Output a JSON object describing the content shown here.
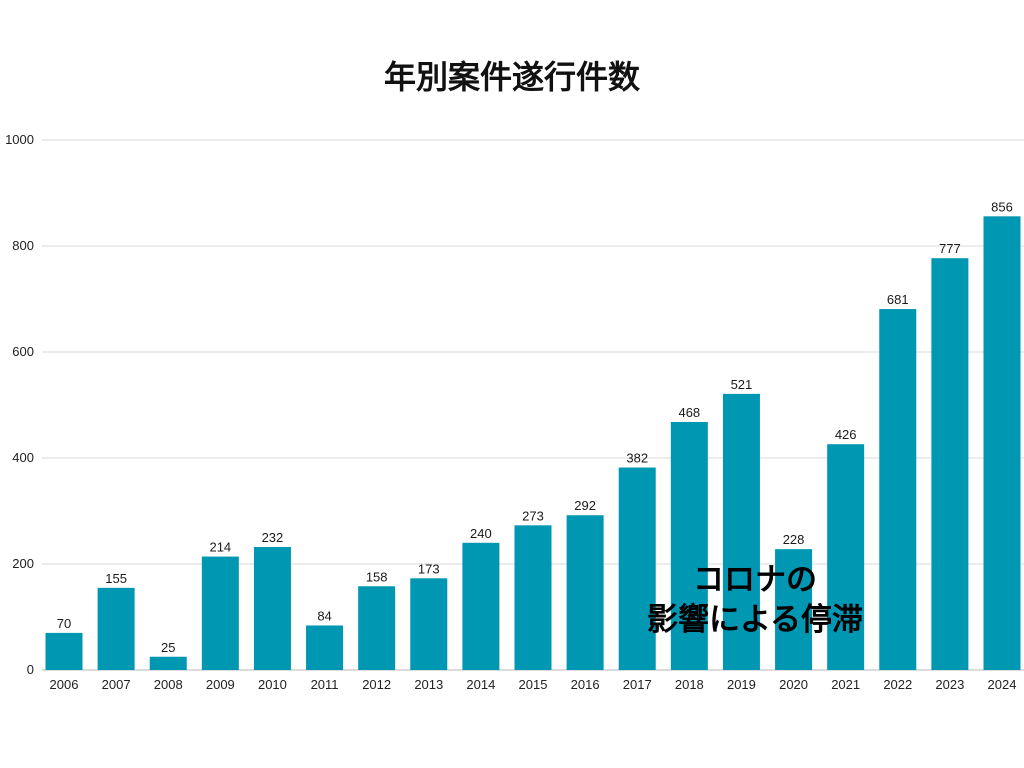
{
  "chart_data": {
    "type": "bar",
    "title": "年別案件遂行件数",
    "xlabel": "",
    "ylabel": "",
    "ylim": [
      0,
      1000
    ],
    "yticks": [
      0,
      200,
      400,
      600,
      800,
      1000
    ],
    "grid": true,
    "categories": [
      "2006",
      "2007",
      "2008",
      "2009",
      "2010",
      "2011",
      "2012",
      "2013",
      "2014",
      "2015",
      "2016",
      "2017",
      "2018",
      "2019",
      "2020",
      "2021",
      "2022",
      "2023",
      "2024"
    ],
    "values": [
      70,
      155,
      25,
      214,
      232,
      84,
      158,
      173,
      240,
      273,
      292,
      382,
      468,
      521,
      228,
      426,
      681,
      777,
      856
    ],
    "bar_color": "#0097b2",
    "annotation": {
      "line1": "コロナの",
      "line2": "影響による停滞"
    }
  }
}
